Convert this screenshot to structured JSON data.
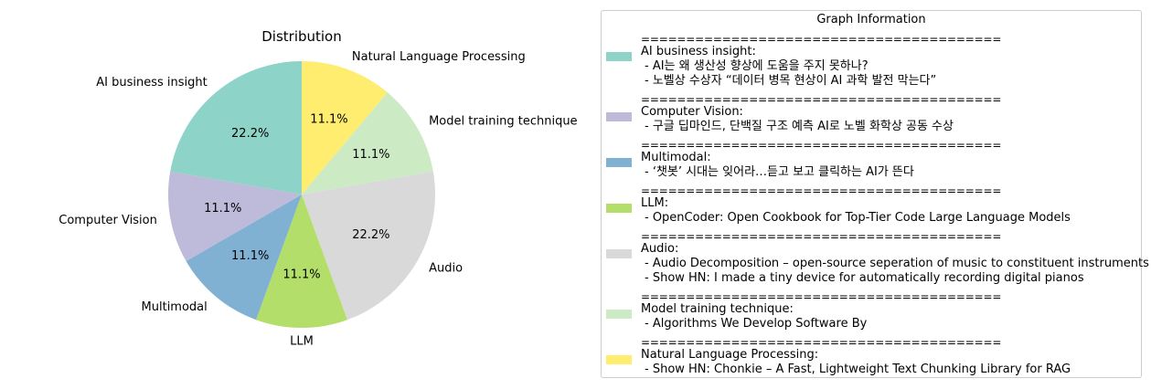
{
  "chart_data": {
    "type": "pie",
    "title": "Distribution",
    "slices": [
      {
        "label": "Natural Language Processing",
        "value": 11.1,
        "pct_label": "11.1%",
        "color": "#ffed6f"
      },
      {
        "label": "Model training technique",
        "value": 11.1,
        "pct_label": "11.1%",
        "color": "#ccebc5"
      },
      {
        "label": "Audio",
        "value": 22.2,
        "pct_label": "22.2%",
        "color": "#d9d9d9"
      },
      {
        "label": "LLM",
        "value": 11.1,
        "pct_label": "11.1%",
        "color": "#b3de69"
      },
      {
        "label": "Multimodal",
        "value": 11.1,
        "pct_label": "11.1%",
        "color": "#80b1d3"
      },
      {
        "label": "Computer Vision",
        "value": 11.1,
        "pct_label": "11.1%",
        "color": "#bebada"
      },
      {
        "label": "AI business insight",
        "value": 22.2,
        "pct_label": "22.2%",
        "color": "#8dd3c7"
      }
    ],
    "start_angle_deg": 90,
    "direction": "clockwise"
  },
  "legend": {
    "title": "Graph Information",
    "separator": "========================================",
    "groups": [
      {
        "label": "AI business insight:",
        "color": "#8dd3c7",
        "items": [
          " - AI는 왜 생산성 향상에 도움을 주지 못하나?",
          " - 노벨상 수상자 “데이터 병목 현상이 AI 과학 발전 막는다”"
        ]
      },
      {
        "label": "Computer Vision:",
        "color": "#bebada",
        "items": [
          " - 구글 딥마인드, 단백질 구조 예측 AI로 노벨 화학상 공동 수상"
        ]
      },
      {
        "label": "Multimodal:",
        "color": "#80b1d3",
        "items": [
          " - ‘챗봇’ 시대는 잊어라…듣고 보고 클릭하는 AI가 뜬다"
        ]
      },
      {
        "label": "LLM:",
        "color": "#b3de69",
        "items": [
          " - OpenCoder: Open Cookbook for Top-Tier Code Large Language Models"
        ]
      },
      {
        "label": "Audio:",
        "color": "#d9d9d9",
        "items": [
          " - Audio Decomposition – open-source seperation of music to constituent instruments",
          " - Show HN: I made a tiny device for automatically recording digital pianos"
        ]
      },
      {
        "label": "Model training technique:",
        "color": "#ccebc5",
        "items": [
          " - Algorithms We Develop Software By"
        ]
      },
      {
        "label": "Natural Language Processing:",
        "color": "#ffed6f",
        "items": [
          " - Show HN: Chonkie – A Fast, Lightweight Text Chunking Library for RAG"
        ]
      }
    ]
  }
}
